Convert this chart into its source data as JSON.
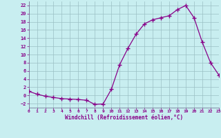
{
  "x": [
    0,
    1,
    2,
    3,
    4,
    5,
    6,
    7,
    8,
    9,
    10,
    11,
    12,
    13,
    14,
    15,
    16,
    17,
    18,
    19,
    20,
    21,
    22,
    23
  ],
  "y": [
    1.0,
    0.3,
    -0.2,
    -0.5,
    -0.8,
    -0.9,
    -1.0,
    -1.2,
    -2.2,
    -2.1,
    1.5,
    7.5,
    11.5,
    15.0,
    17.5,
    18.5,
    19.0,
    19.5,
    21.0,
    22.0,
    19.0,
    13.0,
    8.0,
    5.0
  ],
  "line_color": "#880088",
  "marker": "+",
  "marker_size": 4,
  "marker_linewidth": 1.0,
  "xlim": [
    0,
    23
  ],
  "ylim": [
    -3,
    23
  ],
  "yticks": [
    -2,
    0,
    2,
    4,
    6,
    8,
    10,
    12,
    14,
    16,
    18,
    20,
    22
  ],
  "xticks": [
    0,
    1,
    2,
    3,
    4,
    5,
    6,
    7,
    8,
    9,
    10,
    11,
    12,
    13,
    14,
    15,
    16,
    17,
    18,
    19,
    20,
    21,
    22,
    23
  ],
  "xlabel": "Windchill (Refroidissement éolien,°C)",
  "bg_color": "#c8eef0",
  "grid_color": "#9bbfc4",
  "spine_color": "#666688"
}
